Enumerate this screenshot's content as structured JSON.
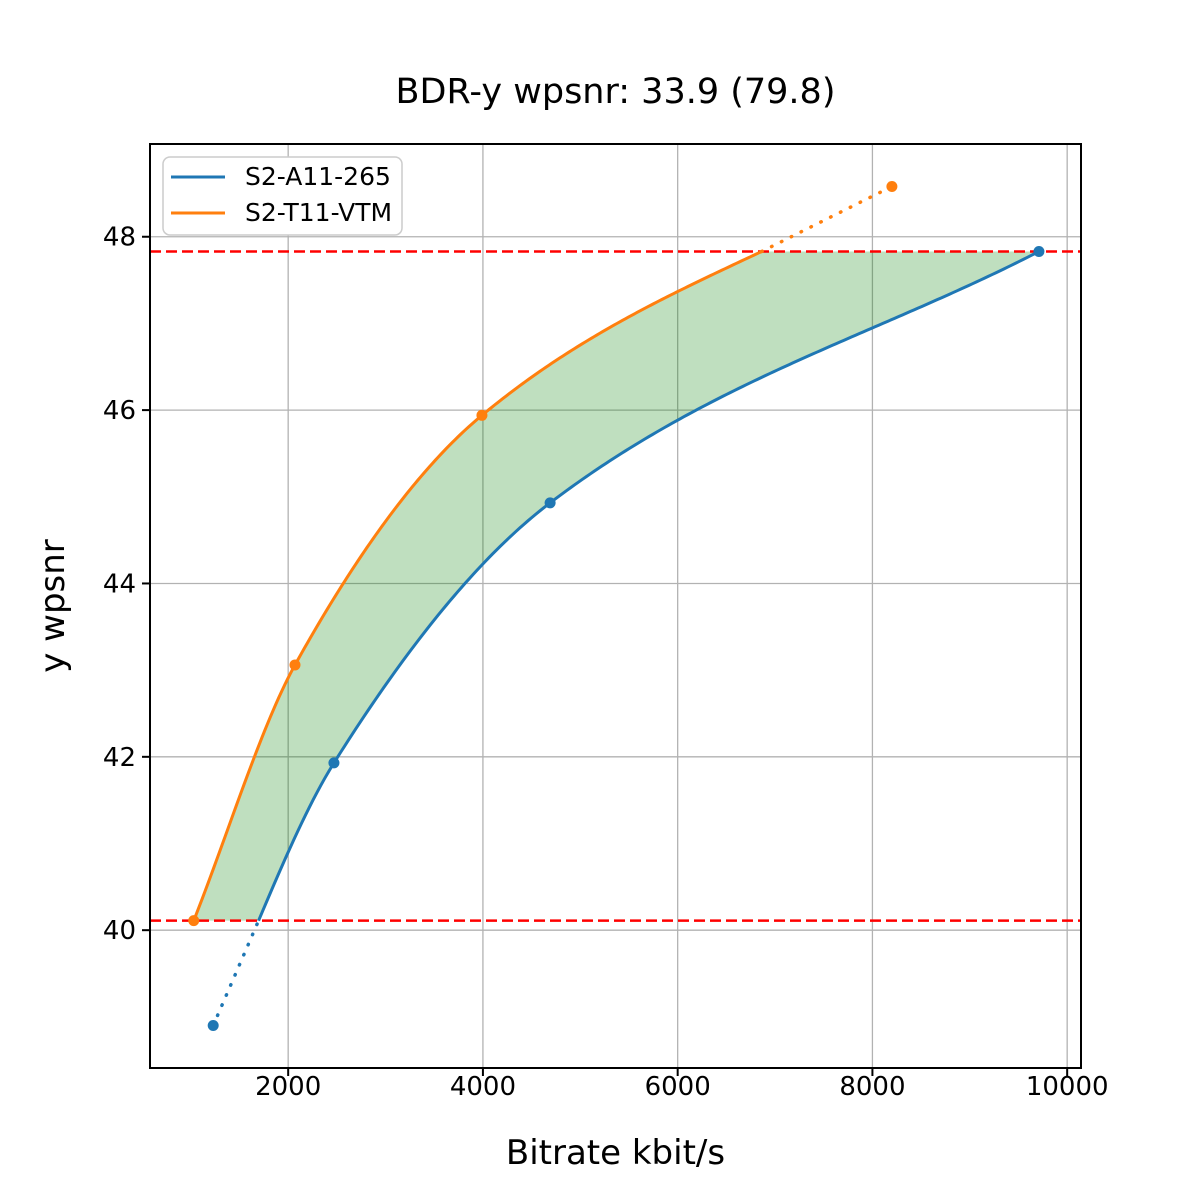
{
  "chart_data": {
    "type": "line",
    "title": "BDR-y wpsnr: 33.9 (79.8)",
    "xlabel": "Bitrate kbit/s",
    "ylabel": "y wpsnr",
    "xlim": [
      581,
      10142
    ],
    "ylim": [
      38.41,
      49.07
    ],
    "xticks": [
      2000,
      4000,
      6000,
      8000,
      10000
    ],
    "yticks": [
      40,
      42,
      44,
      46,
      48
    ],
    "grid": true,
    "grid_color": "#b2b2b2",
    "background_color": "#ffffff",
    "legend": {
      "position": "upper left"
    },
    "series": [
      {
        "name": "S2-A11-265",
        "color": "#1f77b4",
        "points": [
          [
            1230,
            38.9
          ],
          [
            2470,
            41.93
          ],
          [
            4690,
            44.93
          ],
          [
            9710,
            47.83
          ]
        ],
        "dotted_part": "below lower overlap line (first point connected by dotted line)"
      },
      {
        "name": "S2-T11-VTM",
        "color": "#ff7f0e",
        "points": [
          [
            1030,
            40.11
          ],
          [
            2070,
            43.06
          ],
          [
            3990,
            45.94
          ],
          [
            8200,
            48.58
          ]
        ],
        "dotted_part": "above upper overlap line (last point connected by dotted line)"
      }
    ],
    "hlines": [
      {
        "y": 47.83,
        "color": "#ff0000",
        "style": "dashed",
        "meaning": "upper overlap bound"
      },
      {
        "y": 40.11,
        "color": "#ff0000",
        "style": "dashed",
        "meaning": "lower overlap bound"
      }
    ],
    "shaded_region": {
      "color": "#008000",
      "opacity": 0.25,
      "description": "BD-rate area between the two RD curves, clipped between the two red dashed overlap lines"
    }
  }
}
